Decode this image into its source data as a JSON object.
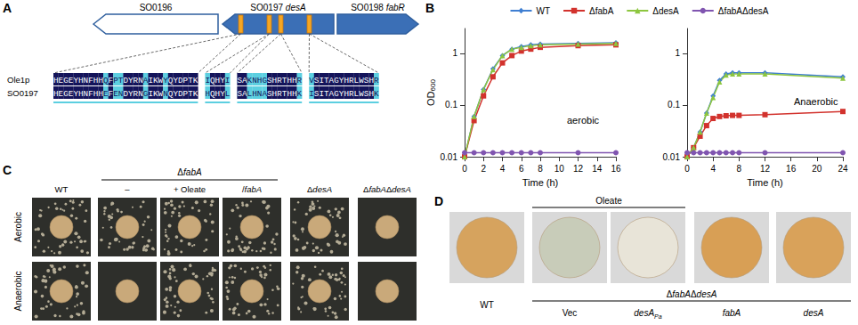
{
  "panels": {
    "A": {
      "label": "A",
      "genes": [
        {
          "label": "SO0196",
          "direction": "left",
          "filled": false
        },
        {
          "label": "SO0197 desA",
          "direction": "left",
          "filled": true
        },
        {
          "label": "SO0198 fabR",
          "direction": "right",
          "filled": true
        }
      ],
      "alignment": [
        {
          "name": "Ole1p",
          "blocks": [
            "HEGEYHNFHHQFPTDYRNAIKWYQYDPTK",
            "IQHYI",
            "SAKNHGSHRTHHR",
            "VSITAGYHRLWSHR"
          ]
        },
        {
          "name": "SO0197",
          "blocks": [
            "HEGEYHNFHHEFENDYRNGIKWNQYDPTK",
            "HQHYL",
            "SALHNASHRTHHK",
            "ISITAGYHRLWSHK"
          ]
        }
      ]
    },
    "B": {
      "label": "B"
    },
    "C": {
      "label": "C",
      "group_label": "ΔfabA",
      "rows": [
        "Aerobic",
        "Anaerobic"
      ],
      "columns": [
        {
          "label": "WT",
          "group": false
        },
        {
          "label": "–",
          "group": true
        },
        {
          "label": "+ Oleate",
          "group": true
        },
        {
          "label": "/fabA",
          "group": true
        },
        {
          "label": "ΔdesA",
          "group": false
        },
        {
          "label": "ΔfabAΔdesA",
          "group": false
        }
      ],
      "colonies": [
        [
          true,
          true,
          true,
          true,
          true,
          false
        ],
        [
          true,
          false,
          true,
          true,
          true,
          false
        ]
      ]
    },
    "D": {
      "label": "D",
      "bracket_label": "Oleate",
      "group_label": "ΔfabAΔdesA",
      "columns": [
        {
          "label": "WT",
          "group": false,
          "oleate": false,
          "color": "#d6a35e"
        },
        {
          "label": "Vec",
          "group": true,
          "oleate": true,
          "color": "#c8ccb9"
        },
        {
          "label": "desA",
          "subscript": "Pa",
          "group": true,
          "oleate": true,
          "color": "#e8e4d8"
        },
        {
          "label": "fabA",
          "group": true,
          "oleate": false,
          "color": "#d89f55"
        },
        {
          "label": "desA",
          "group": true,
          "oleate": false,
          "color": "#d9a25a"
        }
      ]
    }
  },
  "chart_data": [
    {
      "type": "line",
      "annotation": "aerobic",
      "xlabel": "Time (h)",
      "ylabel": {
        "text": "OD",
        "subscript": "600"
      },
      "x": [
        0,
        1,
        2,
        3,
        4,
        5,
        6,
        7,
        8,
        12,
        16
      ],
      "xlim": [
        0,
        16
      ],
      "xticks": [
        0,
        2,
        4,
        6,
        8,
        10,
        12,
        14,
        16
      ],
      "ylim": [
        0.01,
        3
      ],
      "yticks": [
        0.01,
        0.1,
        1
      ],
      "log": "y",
      "grid": false,
      "legend": "top",
      "series": [
        {
          "name": "WT",
          "color": "#3f7fd2",
          "marker": "diamond",
          "values": [
            0.01,
            0.06,
            0.2,
            0.5,
            0.9,
            1.2,
            1.35,
            1.45,
            1.5,
            1.55,
            1.6
          ]
        },
        {
          "name": "ΔfabA",
          "color": "#d2322d",
          "marker": "square",
          "values": [
            0.01,
            0.05,
            0.15,
            0.35,
            0.65,
            0.9,
            1.1,
            1.2,
            1.3,
            1.4,
            1.45
          ]
        },
        {
          "name": "ΔdesA",
          "color": "#8dc63f",
          "marker": "triangle",
          "values": [
            0.01,
            0.06,
            0.2,
            0.48,
            0.9,
            1.2,
            1.3,
            1.4,
            1.45,
            1.5,
            1.55
          ]
        },
        {
          "name": "ΔfabAΔdesA",
          "color": "#8055b0",
          "marker": "circle",
          "values": [
            0.012,
            0.012,
            0.012,
            0.012,
            0.012,
            0.012,
            0.012,
            0.012,
            0.012,
            0.012,
            0.012
          ]
        }
      ]
    },
    {
      "type": "line",
      "annotation": "Anaerobic",
      "xlabel": "Time (h)",
      "x": [
        0,
        1,
        2,
        3,
        4,
        5,
        6,
        7,
        8,
        12,
        24
      ],
      "xlim": [
        0,
        24
      ],
      "xticks": [
        0,
        4,
        8,
        12,
        16,
        20,
        24
      ],
      "ylim": [
        0.01,
        3
      ],
      "yticks": [
        0.01,
        0.1,
        1
      ],
      "log": "y",
      "grid": false,
      "series": [
        {
          "name": "WT",
          "color": "#3f7fd2",
          "marker": "diamond",
          "values": [
            0.01,
            0.015,
            0.03,
            0.07,
            0.15,
            0.3,
            0.4,
            0.42,
            0.42,
            0.42,
            0.35
          ]
        },
        {
          "name": "ΔfabA",
          "color": "#d2322d",
          "marker": "square",
          "values": [
            0.01,
            0.015,
            0.025,
            0.04,
            0.055,
            0.06,
            0.062,
            0.063,
            0.063,
            0.065,
            0.075
          ]
        },
        {
          "name": "ΔdesA",
          "color": "#8dc63f",
          "marker": "triangle",
          "values": [
            0.01,
            0.015,
            0.03,
            0.07,
            0.14,
            0.28,
            0.38,
            0.4,
            0.4,
            0.4,
            0.33
          ]
        },
        {
          "name": "ΔfabAΔdesA",
          "color": "#8055b0",
          "marker": "circle",
          "values": [
            0.012,
            0.012,
            0.012,
            0.012,
            0.012,
            0.012,
            0.012,
            0.012,
            0.012,
            0.012,
            0.012
          ]
        }
      ]
    }
  ]
}
